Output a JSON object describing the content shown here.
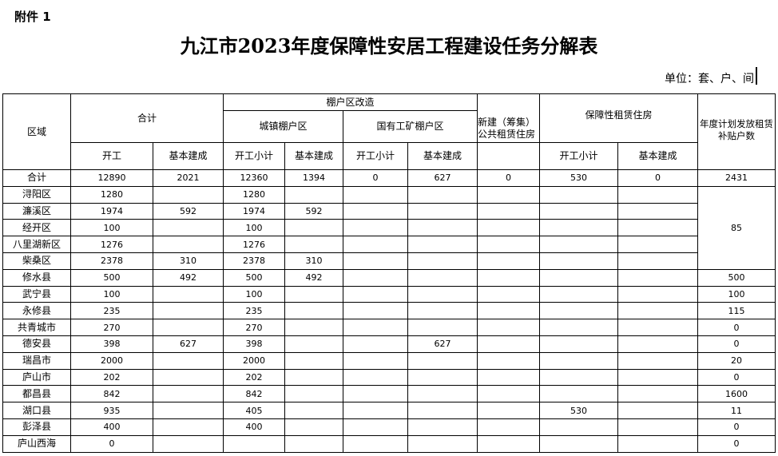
{
  "attachment_label": "附件 1",
  "title": "九江市2023年度保障性安居工程建设任务分解表",
  "unit": "单位：套、户、间",
  "headers": {
    "region": "区域",
    "total": "合计",
    "shanty": "棚户区改造",
    "urban_shanty": "城镇棚户区",
    "state_mine_shanty": "国有工矿棚户区",
    "new_public_rental": "新建（筹集）公共租赁住房",
    "affordable_rental": "保障性租赁住房",
    "rent_subsidy": "年度计划发放租赁补贴户数",
    "start": "开工",
    "basic_complete": "基本建成",
    "start_subtotal": "开工小计"
  },
  "rows": [
    [
      "合计",
      "12890",
      "2021",
      "12360",
      "1394",
      "0",
      "627",
      "0",
      "530",
      "0",
      "2431"
    ],
    [
      "浔阳区",
      "1280",
      "",
      "1280",
      "",
      "",
      "",
      "",
      "",
      "",
      "85"
    ],
    [
      "濂溪区",
      "1974",
      "592",
      "1974",
      "592",
      "",
      "",
      "",
      "",
      "",
      null
    ],
    [
      "经开区",
      "100",
      "",
      "100",
      "",
      "",
      "",
      "",
      "",
      "",
      null
    ],
    [
      "八里湖新区",
      "1276",
      "",
      "1276",
      "",
      "",
      "",
      "",
      "",
      "",
      null
    ],
    [
      "柴桑区",
      "2378",
      "310",
      "2378",
      "310",
      "",
      "",
      "",
      "",
      "",
      null
    ],
    [
      "修水县",
      "500",
      "492",
      "500",
      "492",
      "",
      "",
      "",
      "",
      "",
      "500"
    ],
    [
      "武宁县",
      "100",
      "",
      "100",
      "",
      "",
      "",
      "",
      "",
      "",
      "100"
    ],
    [
      "永修县",
      "235",
      "",
      "235",
      "",
      "",
      "",
      "",
      "",
      "",
      "115"
    ],
    [
      "共青城市",
      "270",
      "",
      "270",
      "",
      "",
      "",
      "",
      "",
      "",
      "0"
    ],
    [
      "德安县",
      "398",
      "627",
      "398",
      "",
      "",
      "627",
      "",
      "",
      "",
      "0"
    ],
    [
      "瑞昌市",
      "2000",
      "",
      "2000",
      "",
      "",
      "",
      "",
      "",
      "",
      "20"
    ],
    [
      "庐山市",
      "202",
      "",
      "202",
      "",
      "",
      "",
      "",
      "",
      "",
      "0"
    ],
    [
      "都昌县",
      "842",
      "",
      "842",
      "",
      "",
      "",
      "",
      "",
      "",
      "1600"
    ],
    [
      "湖口县",
      "935",
      "",
      "405",
      "",
      "",
      "",
      "",
      "530",
      "",
      "11"
    ],
    [
      "彭泽县",
      "400",
      "",
      "400",
      "",
      "",
      "",
      "",
      "",
      "",
      "0"
    ],
    [
      "庐山西海",
      "0",
      "",
      "",
      "",
      "",
      "",
      "",
      "",
      "",
      "0"
    ]
  ]
}
